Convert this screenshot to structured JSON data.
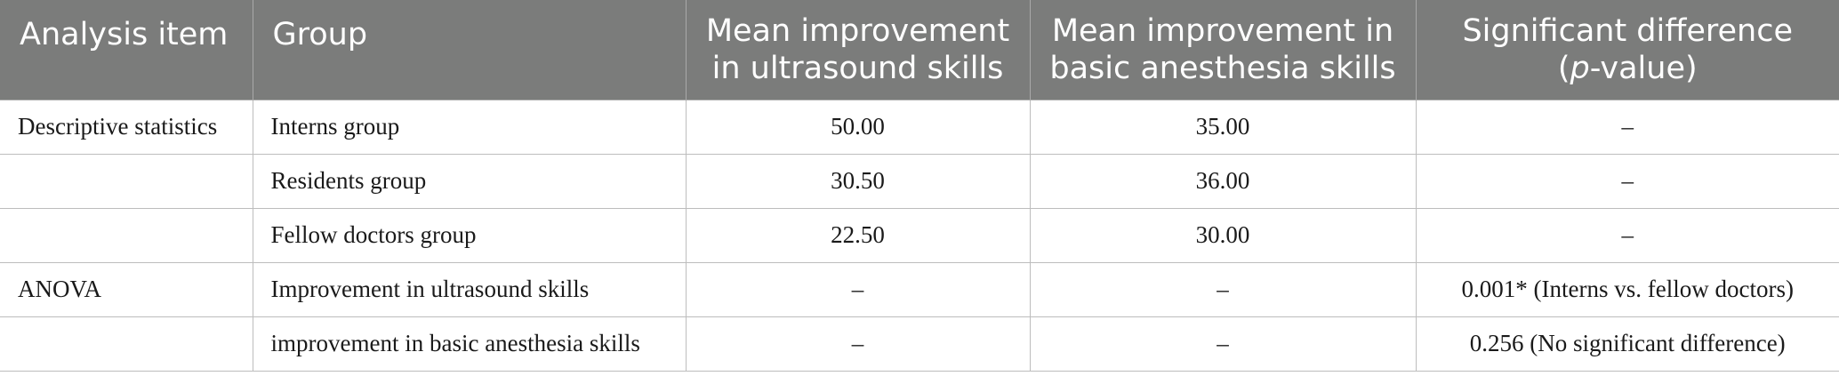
{
  "table": {
    "headers": {
      "analysis_item": "Analysis item",
      "group": "Group",
      "mean_ultrasound_line1": "Mean improvement",
      "mean_ultrasound_line2": "in ultrasound skills",
      "mean_anesthesia_line1": "Mean improvement in",
      "mean_anesthesia_line2": "basic anesthesia skills",
      "significance_line1": "Significant difference",
      "significance_p_open": "(",
      "significance_p_italic": "p",
      "significance_p_rest": "-value)"
    },
    "rows": [
      {
        "analysis_item": "Descriptive statistics",
        "group": "Interns group",
        "mean_ultrasound": "50.00",
        "mean_anesthesia": "35.00",
        "significance": "–"
      },
      {
        "analysis_item": "",
        "group": "Residents group",
        "mean_ultrasound": "30.50",
        "mean_anesthesia": "36.00",
        "significance": "–"
      },
      {
        "analysis_item": "",
        "group": "Fellow doctors group",
        "mean_ultrasound": "22.50",
        "mean_anesthesia": "30.00",
        "significance": "–"
      },
      {
        "analysis_item": "ANOVA",
        "group": "Improvement in ultrasound skills",
        "mean_ultrasound": "–",
        "mean_anesthesia": "–",
        "significance": "0.001* (Interns vs. fellow doctors)"
      },
      {
        "analysis_item": "",
        "group": "improvement in basic anesthesia skills",
        "mean_ultrasound": "–",
        "mean_anesthesia": "–",
        "significance": "0.256 (No significant difference)"
      }
    ]
  }
}
